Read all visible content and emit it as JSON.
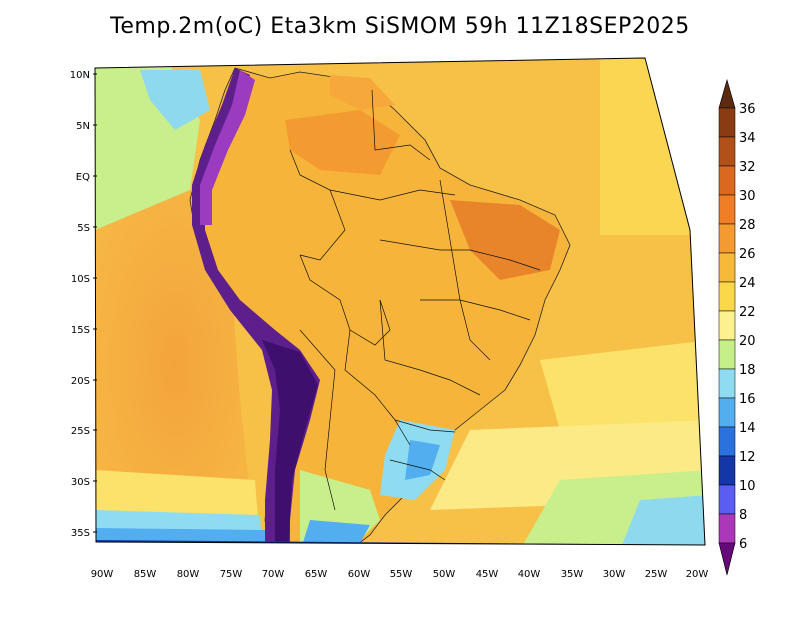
{
  "title": "Temp.2m(oC) Eta3km SiSMOM 59h 11Z18SEP2025",
  "map": {
    "lat_labels": [
      "10N",
      "5N",
      "EQ",
      "5S",
      "10S",
      "15S",
      "20S",
      "25S",
      "30S",
      "35S"
    ],
    "lon_labels": [
      "90W",
      "85W",
      "80W",
      "75W",
      "70W",
      "65W",
      "60W",
      "55W",
      "50W",
      "45W",
      "40W",
      "35W",
      "30W",
      "25W",
      "20W"
    ]
  },
  "colorbar": {
    "labels": [
      "36",
      "34",
      "32",
      "30",
      "28",
      "26",
      "24",
      "22",
      "20",
      "18",
      "16",
      "14",
      "12",
      "10",
      "8",
      "6"
    ],
    "colors": [
      "#5c2a12",
      "#8a3b12",
      "#b2501a",
      "#d9691f",
      "#f39a31",
      "#f7b93a",
      "#fbd84a",
      "#fbf28f",
      "#c6ef8a",
      "#8fdcf2",
      "#53aef0",
      "#2b72de",
      "#1436a6",
      "#2233d8",
      "#7a3fe0",
      "#aa38b8",
      "#660a7a"
    ]
  },
  "colors": {
    "ocean_warm": "#f5b445",
    "ocean_mid": "#f9d653",
    "land_hot": "#f39a31",
    "andes_cold": "#5d1f8c"
  }
}
